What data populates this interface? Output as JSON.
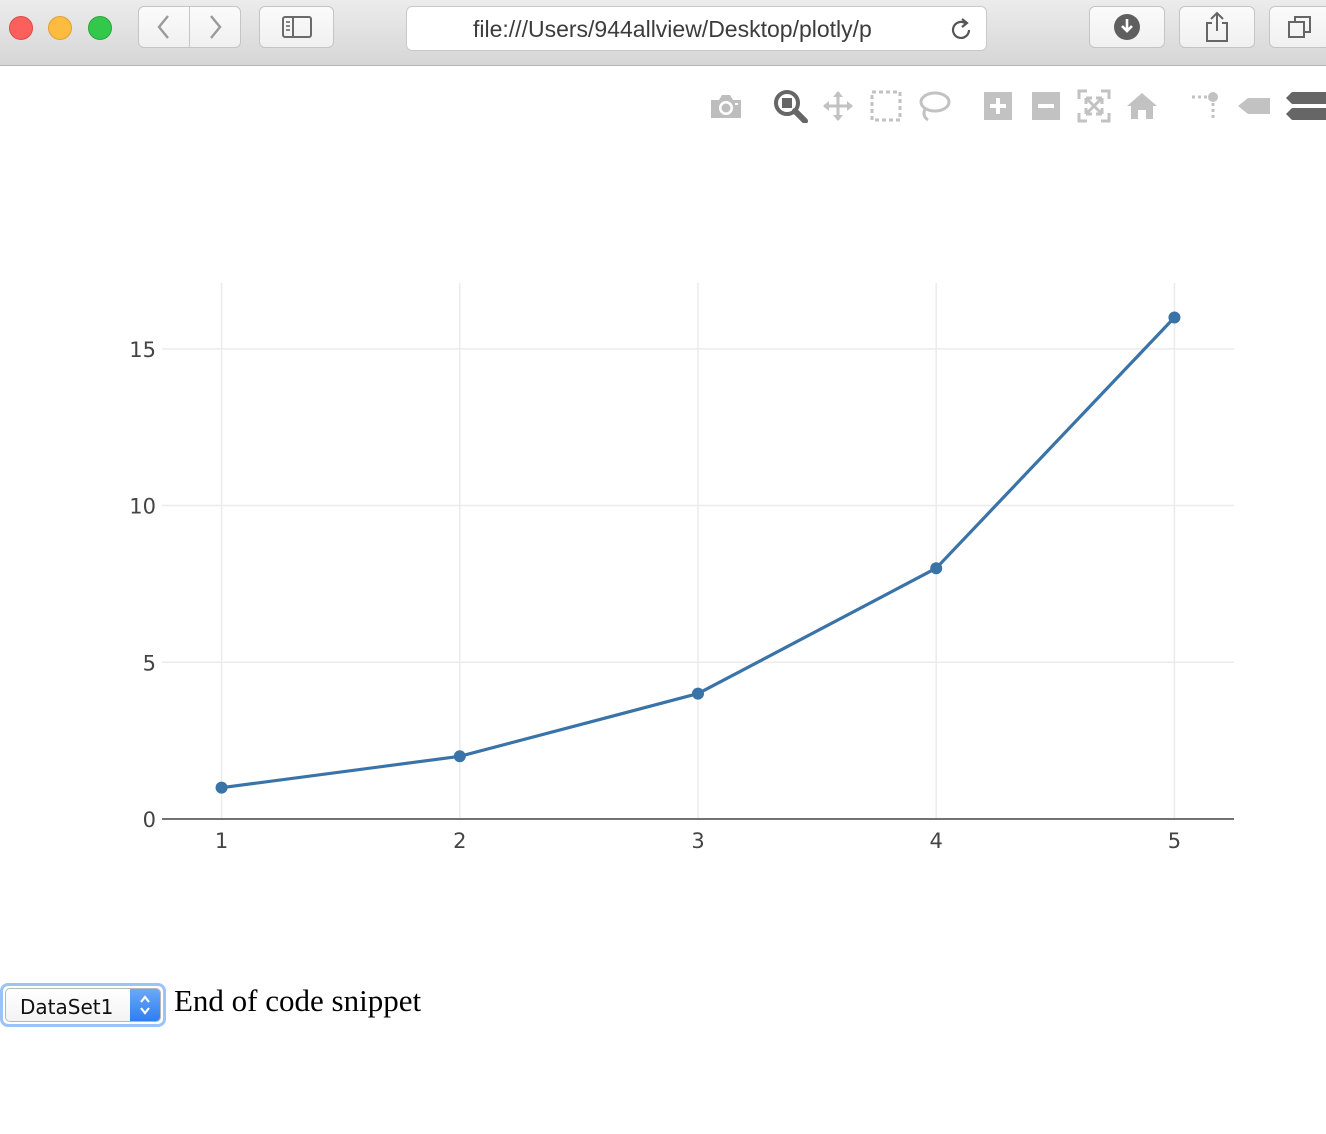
{
  "browser": {
    "url": "file:///Users/944allview/Desktop/plotly/p",
    "icons": [
      "back-icon",
      "forward-icon",
      "sidebar-icon",
      "reload-icon",
      "download-icon",
      "share-icon",
      "tabs-icon"
    ]
  },
  "modebar": {
    "icons": [
      "camera-icon",
      "zoom-icon",
      "pan-icon",
      "box-select-icon",
      "lasso-select-icon",
      "zoom-in-icon",
      "zoom-out-icon",
      "autoscale-icon",
      "home-icon",
      "spike-lines-icon",
      "hover-closest-icon",
      "hover-compare-icon"
    ],
    "active": "zoom-icon"
  },
  "chart_data": {
    "type": "line",
    "x": [
      1,
      2,
      3,
      4,
      5
    ],
    "series": [
      {
        "values": [
          1,
          2,
          4,
          8,
          16
        ],
        "color": "#3a73a8",
        "mode": "lines+markers"
      }
    ],
    "xticks": [
      "1",
      "2",
      "3",
      "4",
      "5"
    ],
    "yticks": [
      "0",
      "5",
      "10",
      "15"
    ],
    "xlim": [
      0.75,
      5.25
    ],
    "ylim": [
      0,
      17.1
    ],
    "grid": true,
    "title": "",
    "xlabel": "",
    "ylabel": ""
  },
  "controls": {
    "dataset_select": "DataSet1",
    "end_note": "End of code snippet"
  }
}
